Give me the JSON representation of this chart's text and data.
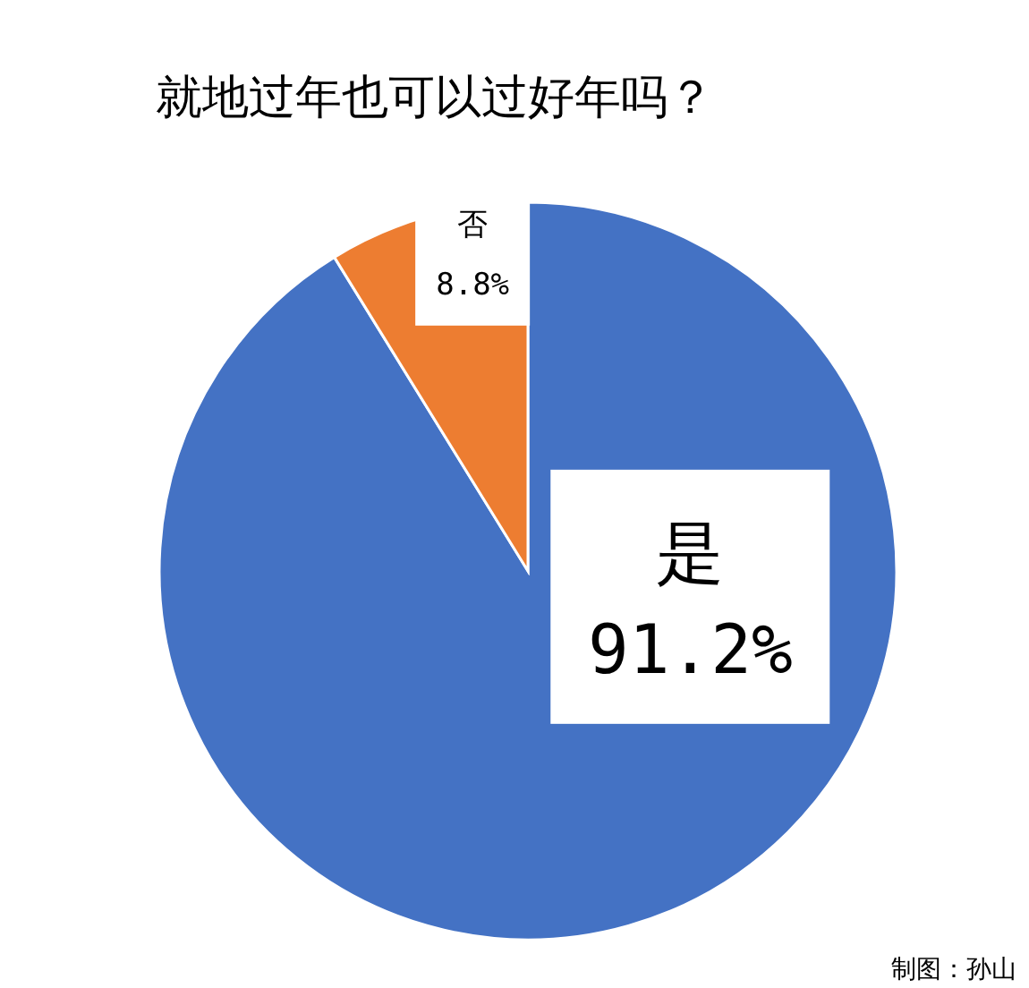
{
  "chart_data": {
    "type": "pie",
    "title": "就地过年也可以过好年吗？",
    "categories": [
      "是",
      "否"
    ],
    "values": [
      91.2,
      8.8
    ],
    "colors": [
      "#4472c4",
      "#ed7d31"
    ],
    "value_labels": [
      "91.2%",
      "8.8%"
    ],
    "legend": false,
    "annotations": [
      "制图：孙山"
    ]
  }
}
